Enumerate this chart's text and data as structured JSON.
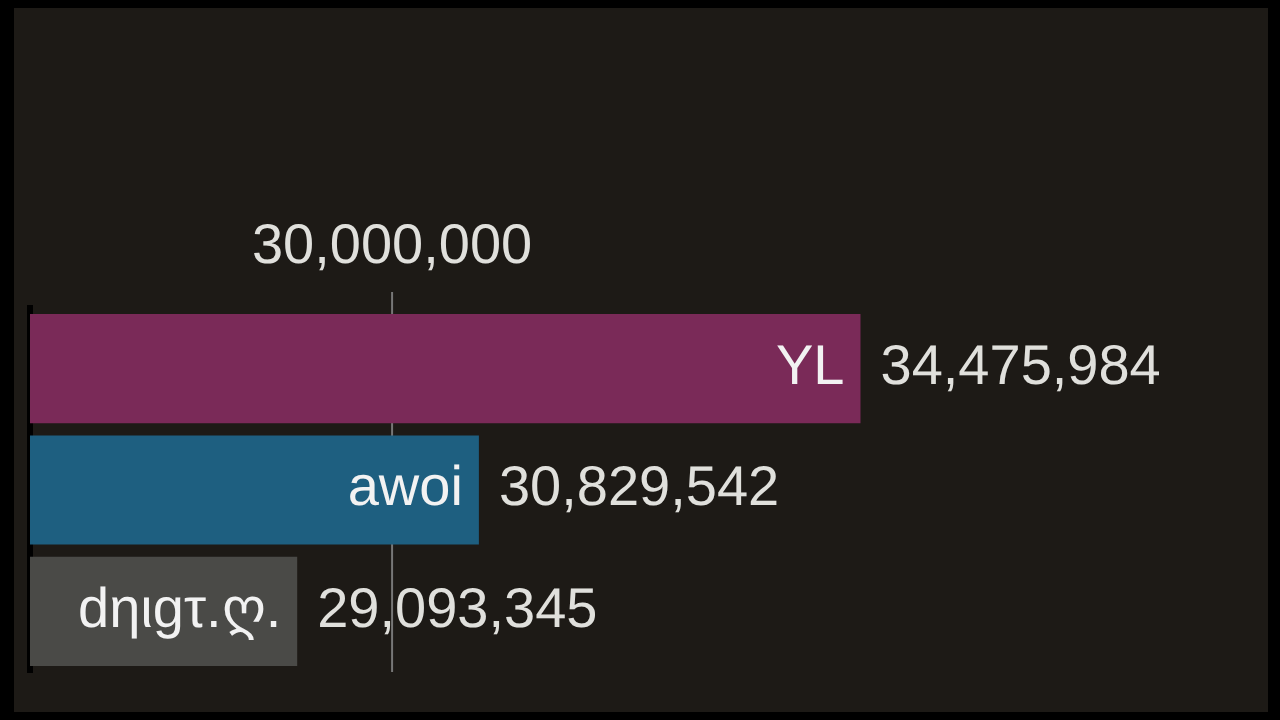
{
  "chart_data": {
    "type": "bar",
    "orientation": "horizontal",
    "categories": [
      "YL",
      "awoi",
      "dηιgτ.ღ."
    ],
    "values": [
      34475984,
      30829542,
      29093345
    ],
    "value_labels": [
      "34,475,984",
      "30,829,542",
      "29,093,345"
    ],
    "colors": [
      "#7a2a58",
      "#1e5f80",
      "#4a4a47"
    ],
    "xlim": [
      26540000,
      38370000
    ],
    "ref_lines": [
      {
        "axis": "x",
        "value": 30000000,
        "label": "30,000,000",
        "color": "#777777"
      }
    ],
    "legend": false,
    "tick_labels": false
  }
}
